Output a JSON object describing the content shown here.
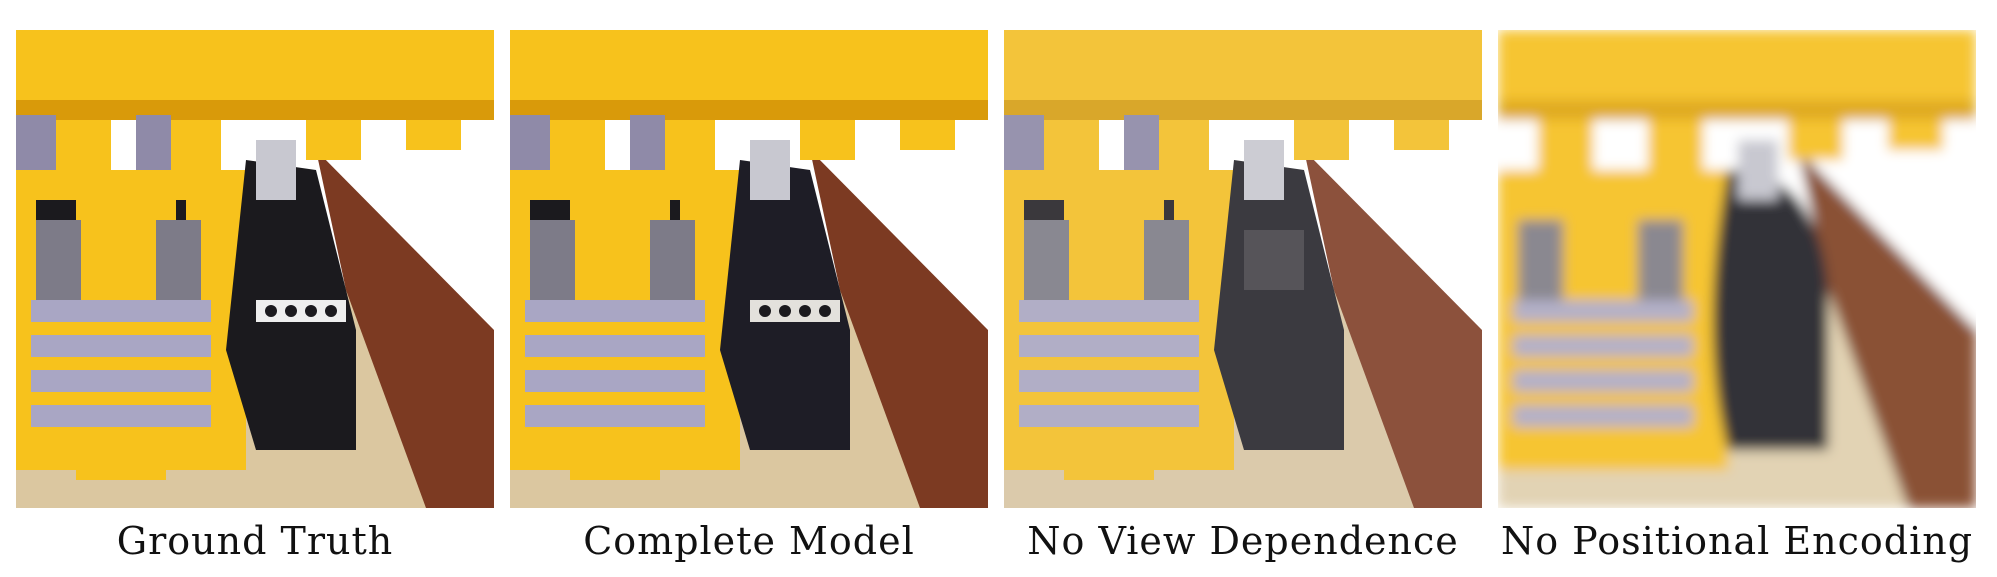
{
  "figure": {
    "panels": [
      {
        "caption": "Ground Truth",
        "variant": "sharp"
      },
      {
        "caption": "Complete Model",
        "variant": "sharp"
      },
      {
        "caption": "No View Dependence",
        "variant": "dull"
      },
      {
        "caption": "No Positional Encoding",
        "variant": "blurry"
      }
    ]
  },
  "colors": {
    "yellow": "#f7c21c",
    "yellow_dark": "#d99a0a",
    "brown": "#7c3a22",
    "tan": "#dbc7a0",
    "gray": "#a9a6c4",
    "black": "#1b1a1e"
  }
}
